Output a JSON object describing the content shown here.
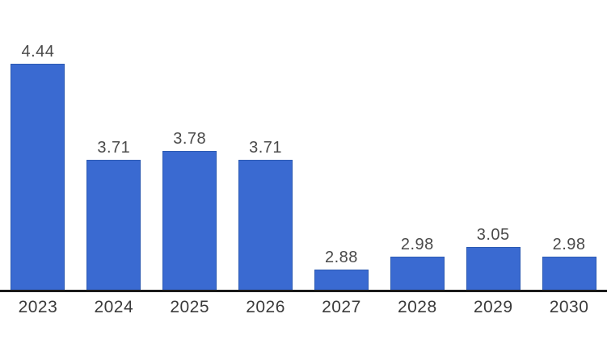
{
  "chart_data": {
    "type": "bar",
    "categories": [
      "2023",
      "2024",
      "2025",
      "2026",
      "2027",
      "2028",
      "2029",
      "2030"
    ],
    "values": [
      4.44,
      3.71,
      3.78,
      3.71,
      2.88,
      2.98,
      3.05,
      2.98
    ],
    "value_labels": [
      "4.44",
      "3.71",
      "3.78",
      "3.71",
      "2.88",
      "2.98",
      "3.05",
      "2.98"
    ],
    "title": "",
    "xlabel": "",
    "ylabel": "",
    "ylim": [
      2.72,
      4.92
    ],
    "grid": false,
    "legend": "none",
    "y_axis_visible": false,
    "colors": {
      "bar_fill": "#3a6ad1",
      "bar_border": "#2c5ab2",
      "axis_line": "#1a1a1a",
      "value_label": "#4a4a4a",
      "category_label": "#3b3b3b",
      "background": "#ffffff"
    }
  }
}
